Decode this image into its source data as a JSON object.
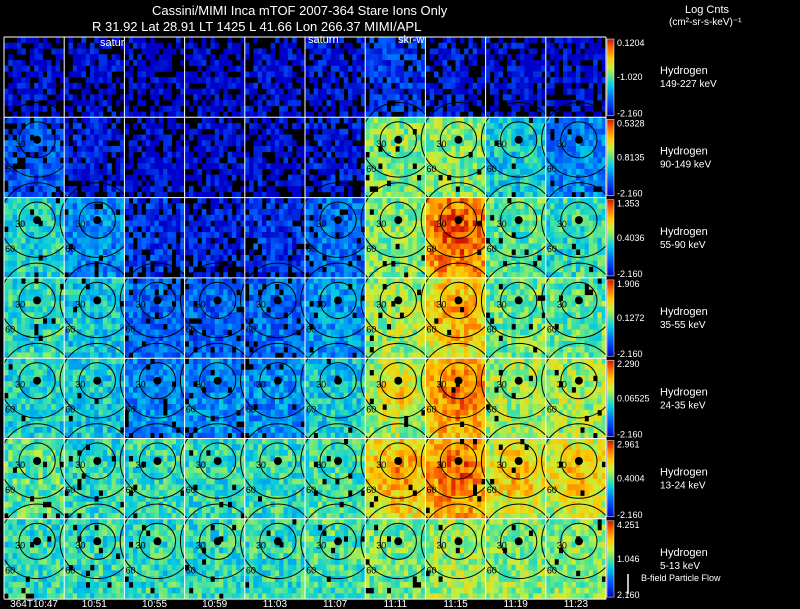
{
  "header": {
    "line1": "Cassini/MIMI Inca mTOF  2007-364   Stare    Ions Only",
    "line2": "R      31.92 Lat 28.91 LT 1425 L      41.66 Lon       266.37  MIMI/APL",
    "log_counts": "Log Cnts",
    "log_units": "(cm²-sr-s-keV)⁻¹"
  },
  "overlays": {
    "satur_1": "satur",
    "satur_2": "saturn",
    "skr": "skr-w"
  },
  "footer": {
    "bfield": "B-field Particle Flow"
  },
  "chart_data": {
    "type": "heatmap",
    "title": "Cassini/MIMI Inca mTOF 2007-364 Stare Ions Only",
    "x_tick_labels": [
      "364T10:47",
      "10:51",
      "10:55",
      "10:59",
      "11:03",
      "11:07",
      "11:11",
      "11:15",
      "11:19",
      "11:23"
    ],
    "ring_labels": [
      "30",
      "60"
    ],
    "rows": [
      {
        "species": "Hydrogen",
        "energy": "149-227 keV",
        "cbar_max": "0.1204",
        "cbar_mid": "-1.020",
        "cbar_min": "-2.160",
        "intensity": [
          0.1,
          0.1,
          0.08,
          0.08,
          0.1,
          0.12,
          0.2,
          0.12,
          0.1,
          0.1
        ]
      },
      {
        "species": "Hydrogen",
        "energy": "90-149 keV",
        "cbar_max": "0.5328",
        "cbar_mid": "0.8135",
        "cbar_min": "-2.160",
        "intensity": [
          0.25,
          0.15,
          0.1,
          0.1,
          0.1,
          0.15,
          0.55,
          0.55,
          0.4,
          0.35
        ]
      },
      {
        "species": "Hydrogen",
        "energy": "55-90 keV",
        "cbar_max": "1.353",
        "cbar_mid": "0.4036",
        "cbar_min": "-2.160",
        "intensity": [
          0.42,
          0.35,
          0.2,
          0.15,
          0.2,
          0.3,
          0.55,
          0.85,
          0.5,
          0.45
        ]
      },
      {
        "species": "Hydrogen",
        "energy": "35-55 keV",
        "cbar_max": "1.906",
        "cbar_mid": "0.1272",
        "cbar_min": "-2.160",
        "intensity": [
          0.45,
          0.4,
          0.3,
          0.28,
          0.3,
          0.38,
          0.58,
          0.72,
          0.52,
          0.5
        ]
      },
      {
        "species": "Hydrogen",
        "energy": "24-35 keV",
        "cbar_max": "2.290",
        "cbar_mid": "0.06525",
        "cbar_min": "-2.160",
        "intensity": [
          0.42,
          0.4,
          0.35,
          0.35,
          0.36,
          0.4,
          0.62,
          0.8,
          0.58,
          0.58
        ]
      },
      {
        "species": "Hydrogen",
        "energy": "13-24 keV",
        "cbar_max": "2.961",
        "cbar_mid": "0.4004",
        "cbar_min": "-2.160",
        "intensity": [
          0.5,
          0.45,
          0.45,
          0.45,
          0.45,
          0.48,
          0.72,
          0.82,
          0.68,
          0.68
        ]
      },
      {
        "species": "Hydrogen",
        "energy": "5-13 keV",
        "cbar_max": "4.251",
        "cbar_mid": "1.046",
        "cbar_min": "2.160",
        "intensity": [
          0.45,
          0.45,
          0.45,
          0.45,
          0.45,
          0.48,
          0.52,
          0.58,
          0.55,
          0.55
        ]
      }
    ]
  }
}
